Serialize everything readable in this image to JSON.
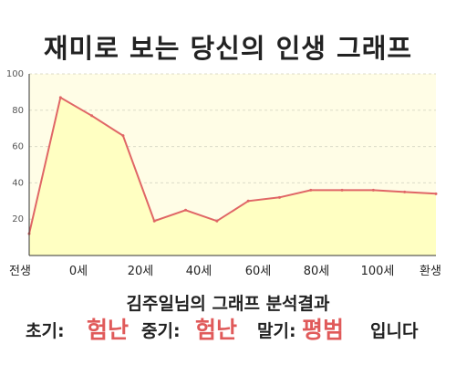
{
  "title": "재미로 보는 당신의 인생 그래프",
  "subtitle": "김주일님의 그래프 분석결과",
  "result": {
    "early_label": "초기:",
    "early_value": "험난",
    "middle_label": "중기:",
    "middle_value": "험난",
    "late_label": "말기:",
    "late_value": "평범",
    "suffix": "입니다"
  },
  "colors": {
    "plot_background": "#fffde6",
    "area_fill": "#ffffc2",
    "line": "#e06666",
    "highlight_text": "#e05a5a",
    "grid": "#dcdcc8",
    "axis": "#333333"
  },
  "chart_data": {
    "type": "area",
    "x_tick_labels": [
      "전생",
      "0세",
      "20세",
      "40세",
      "60세",
      "80세",
      "100세",
      "환생"
    ],
    "y_ticks": [
      20,
      40,
      60,
      80,
      100
    ],
    "ylim": [
      0,
      100
    ],
    "grid": true,
    "series": [
      {
        "x": [
          "전생",
          "0세",
          "10세",
          "20세",
          "30세",
          "40세",
          "50세",
          "60세",
          "70세",
          "80세",
          "90세",
          "100세",
          "110세",
          "환생"
        ],
        "values": [
          12,
          87,
          77,
          66,
          19,
          25,
          19,
          30,
          32,
          36,
          36,
          36,
          35,
          34
        ]
      }
    ]
  }
}
